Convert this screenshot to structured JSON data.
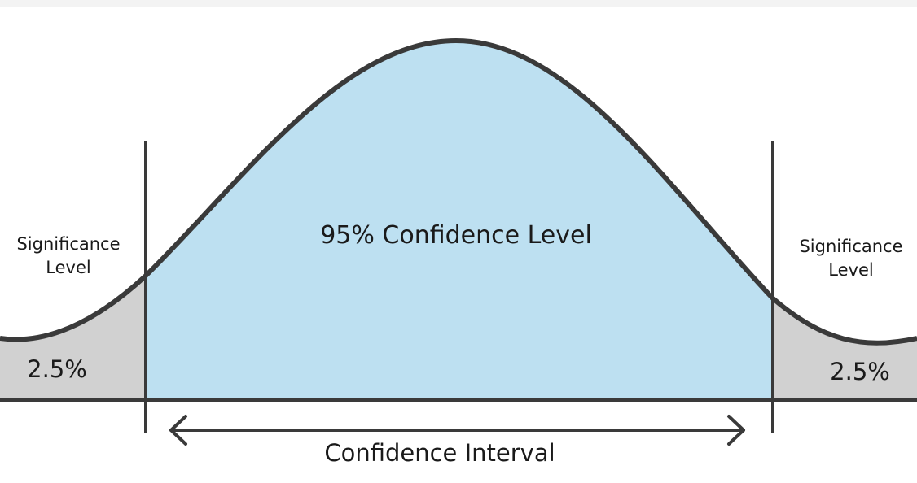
{
  "diagram": {
    "center_label": "95% Confidence Level",
    "left_tail": {
      "label_line1": "Significance",
      "label_line2": "Level",
      "percent": "2.5%"
    },
    "right_tail": {
      "label_line1": "Significance",
      "label_line2": "Level",
      "percent": "2.5%"
    },
    "interval_label": "Confidence Interval",
    "colors": {
      "confidence_fill": "#bde0f1",
      "tail_fill": "#d1d1d1",
      "stroke": "#3a3a3a"
    }
  }
}
